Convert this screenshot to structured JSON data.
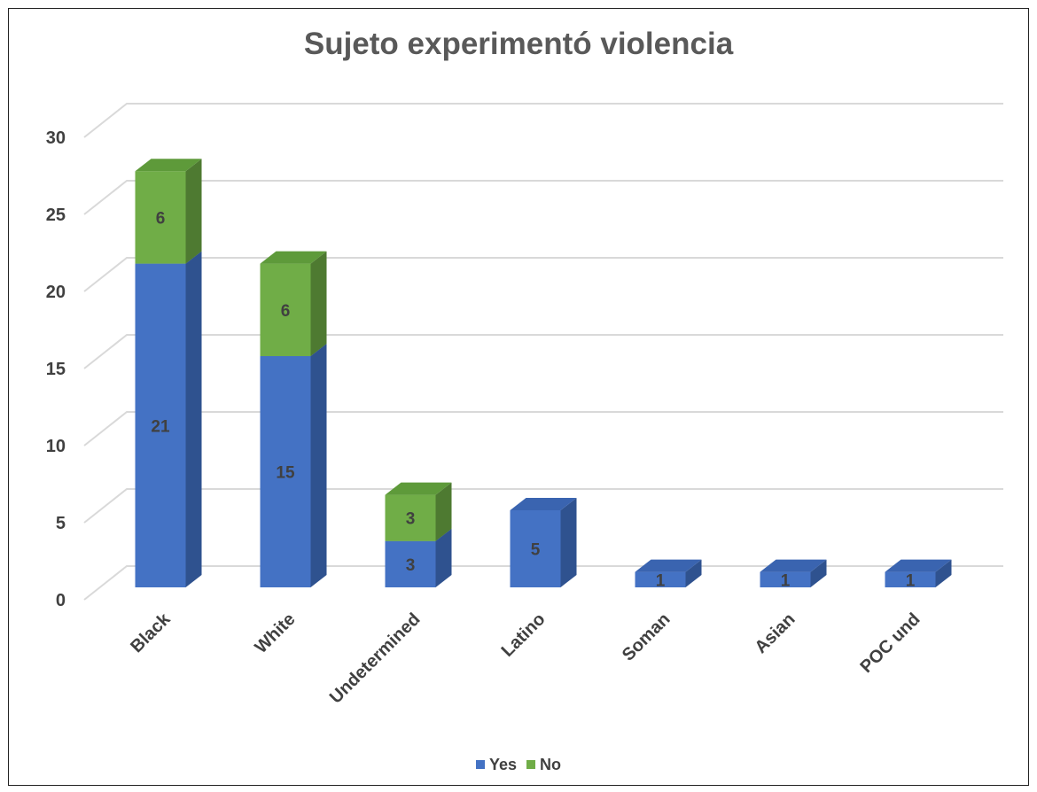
{
  "chart_data": {
    "type": "bar",
    "stacked": true,
    "three_d": true,
    "title": "Sujeto experimentó violencia",
    "categories": [
      "Black",
      "White",
      "Undetermined",
      "Latino",
      "Soman",
      "Asian",
      "POC und"
    ],
    "series": [
      {
        "name": "Yes",
        "values": [
          21,
          15,
          3,
          5,
          1,
          1,
          1
        ],
        "color": "#4472C4"
      },
      {
        "name": "No",
        "values": [
          6,
          6,
          3,
          0,
          0,
          0,
          0
        ],
        "color": "#70AD47"
      }
    ],
    "ylim": [
      0,
      30
    ],
    "yticks": [
      "0",
      "5",
      "10",
      "15",
      "20",
      "25",
      "30"
    ],
    "grid": true,
    "legend_position": "bottom"
  },
  "colors": {
    "yes_front": "#4472C4",
    "yes_side": "#2F528F",
    "yes_top": "#3A64B0",
    "no_front": "#70AD47",
    "no_side": "#4E7A31",
    "no_top": "#5E9A3A",
    "grid": "#D9D9D9",
    "text": "#404040"
  }
}
